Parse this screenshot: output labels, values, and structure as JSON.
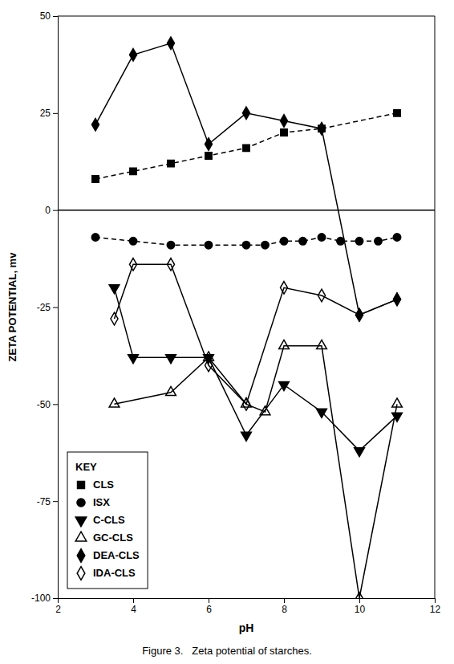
{
  "chart_data": {
    "type": "line",
    "title": "Figure 3.   Zeta potential of starches.",
    "xlabel": "pH",
    "ylabel": "ZETA POTENTIAL, mv",
    "xlim": [
      2,
      12
    ],
    "ylim": [
      -100,
      50
    ],
    "xticks": [
      2,
      4,
      6,
      8,
      10,
      12
    ],
    "yticks": [
      -100,
      -75,
      -50,
      -25,
      0,
      25,
      50
    ],
    "hlines": [
      0
    ],
    "legend": "lower left",
    "legend_title": "KEY",
    "series": [
      {
        "name": "CLS",
        "color": "black",
        "marker": "square",
        "line_style": "dashed",
        "x": [
          3,
          4,
          5,
          6,
          7,
          8,
          9,
          11
        ],
        "values": [
          8,
          10,
          12,
          14,
          16,
          20,
          21,
          25
        ]
      },
      {
        "name": "ISX",
        "color": "black",
        "marker": "circle",
        "line_style": "dashed",
        "x": [
          3,
          4,
          5,
          6,
          7,
          7.5,
          8,
          8.5,
          9,
          9.5,
          10,
          10.5,
          11
        ],
        "values": [
          -7,
          -8,
          -9,
          -9,
          -9,
          -9,
          -8,
          -8,
          -7,
          -8,
          -8,
          -8,
          -7
        ]
      },
      {
        "name": "C-CLS",
        "color": "black",
        "marker": "triangle-down",
        "line_style": "solid",
        "x": [
          3.5,
          4,
          5,
          6,
          7,
          8,
          9,
          10,
          11
        ],
        "values": [
          -20,
          -38,
          -38,
          -38,
          -58,
          -45,
          -52,
          -62,
          -53
        ]
      },
      {
        "name": "GC-CLS",
        "color": "black",
        "marker": "triangle-up-open",
        "line_style": "solid",
        "x": [
          3.5,
          5,
          6,
          7,
          7.5,
          8,
          9,
          10,
          11
        ],
        "values": [
          -50,
          -47,
          -38,
          -50,
          -52,
          -35,
          -35,
          -100,
          -50
        ]
      },
      {
        "name": "DEA-CLS",
        "color": "black",
        "marker": "diamond",
        "line_style": "solid",
        "x": [
          3,
          4,
          5,
          6,
          7,
          8,
          9,
          10,
          11
        ],
        "values": [
          22,
          40,
          43,
          17,
          25,
          23,
          21,
          -27,
          -23
        ]
      },
      {
        "name": "IDA-CLS",
        "color": "black",
        "marker": "diamond-open",
        "line_style": "solid",
        "x": [
          3.5,
          4,
          5,
          6,
          7,
          8,
          9,
          10,
          11
        ],
        "values": [
          -28,
          -14,
          -14,
          -40,
          -50,
          -20,
          -22,
          -27,
          -23
        ]
      }
    ]
  }
}
